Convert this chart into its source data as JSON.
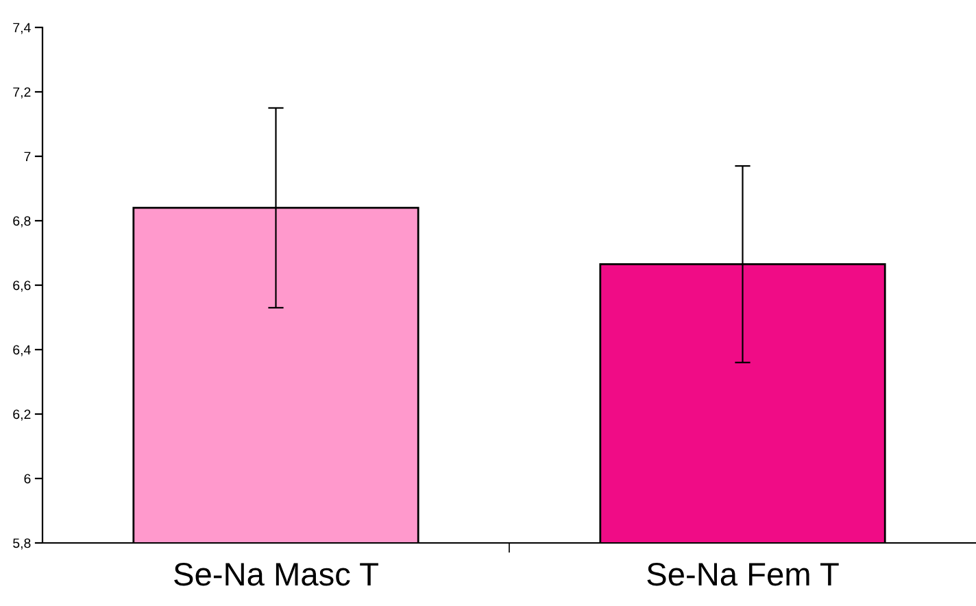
{
  "chart_data": {
    "type": "bar",
    "categories": [
      "Se-Na Masc T",
      "Se-Na Fem T"
    ],
    "values": [
      6.84,
      6.665
    ],
    "errors": [
      0.31,
      0.305
    ],
    "colors": [
      "#ff99cc",
      "#f00c86"
    ],
    "ylim": [
      5.8,
      7.4
    ],
    "yticks": [
      {
        "value": 5.8,
        "label": "5,8"
      },
      {
        "value": 6.0,
        "label": "6"
      },
      {
        "value": 6.2,
        "label": "6,2"
      },
      {
        "value": 6.4,
        "label": "6,4"
      },
      {
        "value": 6.6,
        "label": "6,6"
      },
      {
        "value": 6.8,
        "label": "6,8"
      },
      {
        "value": 7.0,
        "label": "7"
      },
      {
        "value": 7.2,
        "label": "7,2"
      },
      {
        "value": 7.4,
        "label": "7,4"
      }
    ],
    "grid": false,
    "legend": false
  }
}
